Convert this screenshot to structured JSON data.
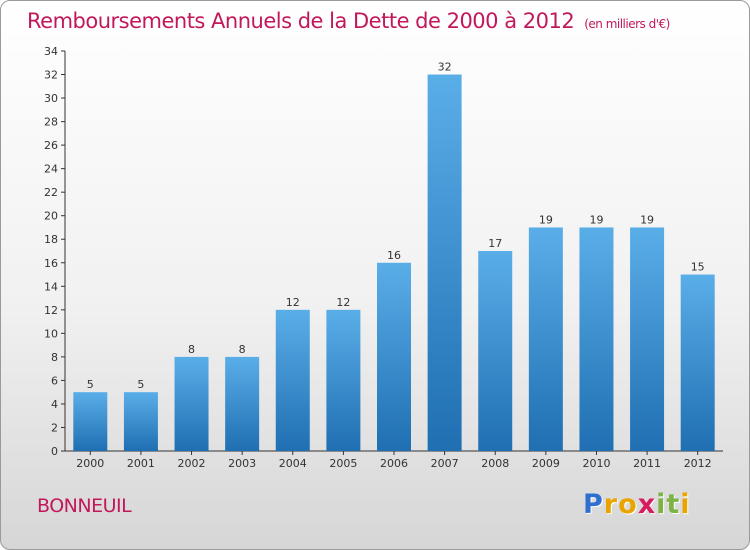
{
  "title": "Remboursements Annuels de la Dette de 2000 à 2012",
  "unit_note": "(en milliers d'€)",
  "town": "BONNEUIL",
  "logo": {
    "text": "Proxiti",
    "letters": [
      {
        "ch": "P",
        "color": "#2f6fd0"
      },
      {
        "ch": "r",
        "color": "#e9a400"
      },
      {
        "ch": "o",
        "color": "#e9a400"
      },
      {
        "ch": "x",
        "color": "#d81b60"
      },
      {
        "ch": "i",
        "color": "#7cb342"
      },
      {
        "ch": "t",
        "color": "#7cb342"
      },
      {
        "ch": "i",
        "color": "#e9a400"
      }
    ]
  },
  "chart_data": {
    "type": "bar",
    "categories": [
      "2000",
      "2001",
      "2002",
      "2003",
      "2004",
      "2005",
      "2006",
      "2007",
      "2008",
      "2009",
      "2010",
      "2011",
      "2012"
    ],
    "values": [
      5,
      5,
      8,
      8,
      12,
      12,
      16,
      32,
      17,
      19,
      19,
      19,
      15
    ],
    "ylim": [
      0,
      34
    ],
    "yticks": [
      0,
      2,
      4,
      6,
      8,
      10,
      12,
      14,
      16,
      18,
      20,
      22,
      24,
      26,
      28,
      30,
      32,
      34
    ],
    "grid": false,
    "bar_color_top": "#5aaee8",
    "bar_color_bottom": "#1f6fb2",
    "data_labels": true
  }
}
